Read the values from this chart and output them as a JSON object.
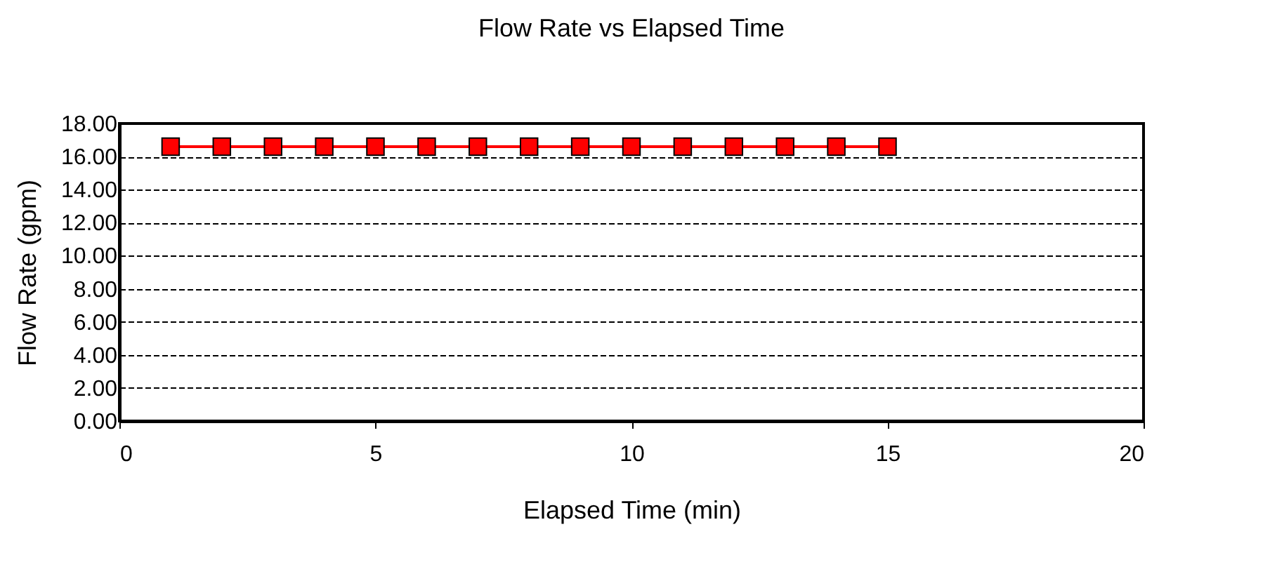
{
  "chart_data": {
    "type": "line",
    "title": "Flow Rate vs Elapsed Time",
    "xlabel": "Elapsed Time (min)",
    "ylabel": "Flow Rate (gpm)",
    "x": [
      1,
      2,
      3,
      4,
      5,
      6,
      7,
      8,
      9,
      10,
      11,
      12,
      13,
      14,
      15
    ],
    "series": [
      {
        "color": "#ff0000",
        "values": [
          16.6,
          16.6,
          16.6,
          16.6,
          16.6,
          16.6,
          16.6,
          16.6,
          16.6,
          16.6,
          16.6,
          16.6,
          16.6,
          16.6,
          16.6
        ]
      }
    ],
    "xlim": [
      0,
      20
    ],
    "xticks": [
      0,
      5,
      10,
      15,
      20
    ],
    "ylim": [
      0,
      18
    ],
    "yticks": [
      {
        "value": 0,
        "label": "0.00"
      },
      {
        "value": 2,
        "label": "2.00"
      },
      {
        "value": 4,
        "label": "4.00"
      },
      {
        "value": 6,
        "label": "6.00"
      },
      {
        "value": 8,
        "label": "8.00"
      },
      {
        "value": 10,
        "label": "10.00"
      },
      {
        "value": 12,
        "label": "12.00"
      },
      {
        "value": 14,
        "label": "14.00"
      },
      {
        "value": 16,
        "label": "16.00"
      },
      {
        "value": 18,
        "label": "18.00"
      }
    ],
    "grid": "y",
    "marker": "square",
    "line_style": "solid",
    "legend": false
  }
}
